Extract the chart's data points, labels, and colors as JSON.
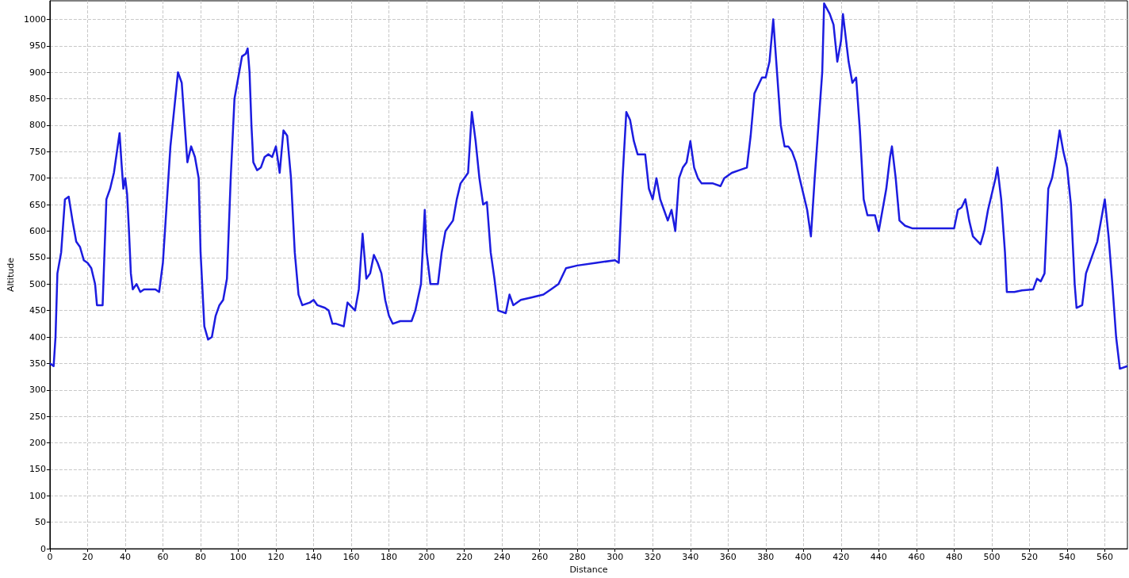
{
  "chart_data": {
    "type": "line",
    "xlabel": "Distance",
    "ylabel": "Altitude",
    "xlim": [
      0,
      572
    ],
    "ylim": [
      0,
      1035
    ],
    "xticks": [
      0,
      20,
      40,
      60,
      80,
      100,
      120,
      140,
      160,
      180,
      200,
      220,
      240,
      260,
      280,
      300,
      320,
      340,
      360,
      380,
      400,
      420,
      440,
      460,
      480,
      500,
      520,
      540,
      560
    ],
    "yticks": [
      0,
      50,
      100,
      150,
      200,
      250,
      300,
      350,
      400,
      450,
      500,
      550,
      600,
      650,
      700,
      750,
      800,
      850,
      900,
      950,
      1000
    ],
    "grid": true,
    "line_style": "solid",
    "marker": "none",
    "series": [
      {
        "color": "#1c1ce0",
        "x": [
          0,
          2,
          3,
          4,
          6,
          8,
          10,
          12,
          14,
          16,
          18,
          20,
          22,
          24,
          25,
          28,
          29,
          30,
          32,
          34,
          36,
          37,
          38,
          39,
          40,
          41,
          42,
          43,
          44,
          46,
          48,
          50,
          52,
          56,
          58,
          60,
          62,
          64,
          66,
          68,
          70,
          72,
          73,
          75,
          77,
          79,
          80,
          82,
          84,
          86,
          88,
          90,
          92,
          94,
          96,
          98,
          100,
          102,
          104,
          105,
          106,
          107,
          108,
          110,
          112,
          114,
          116,
          118,
          120,
          122,
          124,
          126,
          128,
          130,
          132,
          134,
          138,
          140,
          142,
          146,
          148,
          150,
          152,
          156,
          158,
          162,
          164,
          166,
          168,
          170,
          172,
          174,
          176,
          178,
          180,
          182,
          186,
          192,
          194,
          197,
          199,
          200,
          202,
          206,
          208,
          210,
          214,
          216,
          218,
          220,
          222,
          224,
          226,
          228,
          230,
          232,
          234,
          236,
          238,
          242,
          244,
          246,
          250,
          256,
          262,
          266,
          270,
          274,
          280,
          290,
          300,
          302,
          304,
          306,
          308,
          310,
          312,
          316,
          318,
          320,
          322,
          324,
          326,
          328,
          330,
          332,
          334,
          336,
          338,
          340,
          342,
          344,
          346,
          352,
          356,
          358,
          362,
          366,
          370,
          372,
          374,
          378,
          380,
          382,
          384,
          386,
          388,
          390,
          392,
          394,
          396,
          398,
          400,
          402,
          404,
          406,
          408,
          410,
          411,
          414,
          416,
          418,
          420,
          421,
          422,
          424,
          426,
          428,
          430,
          432,
          434,
          438,
          440,
          442,
          444,
          446,
          447,
          449,
          451,
          454,
          458,
          466,
          474,
          480,
          482,
          484,
          486,
          488,
          490,
          494,
          496,
          498,
          500,
          502,
          503,
          505,
          507,
          508,
          512,
          516,
          522,
          524,
          526,
          528,
          530,
          532,
          534,
          536,
          538,
          540,
          542,
          544,
          545,
          548,
          550,
          552,
          554,
          556,
          558,
          560,
          562,
          564,
          566,
          568,
          572
        ],
        "values": [
          350,
          345,
          400,
          520,
          560,
          660,
          665,
          620,
          580,
          570,
          545,
          540,
          530,
          500,
          460,
          460,
          560,
          660,
          680,
          710,
          760,
          785,
          730,
          680,
          700,
          670,
          600,
          520,
          490,
          500,
          485,
          490,
          490,
          490,
          485,
          540,
          650,
          760,
          830,
          900,
          880,
          780,
          730,
          760,
          740,
          700,
          560,
          420,
          395,
          400,
          440,
          460,
          470,
          510,
          700,
          850,
          890,
          930,
          935,
          945,
          900,
          800,
          730,
          715,
          720,
          740,
          745,
          740,
          760,
          710,
          790,
          780,
          700,
          560,
          480,
          460,
          465,
          470,
          460,
          455,
          450,
          425,
          425,
          420,
          465,
          450,
          490,
          595,
          510,
          520,
          555,
          540,
          520,
          470,
          440,
          425,
          430,
          430,
          450,
          500,
          640,
          560,
          500,
          500,
          560,
          600,
          620,
          660,
          690,
          700,
          710,
          825,
          770,
          700,
          650,
          655,
          560,
          510,
          450,
          445,
          480,
          460,
          470,
          475,
          480,
          490,
          500,
          530,
          535,
          540,
          545,
          540,
          700,
          825,
          810,
          770,
          745,
          745,
          680,
          660,
          700,
          660,
          640,
          620,
          640,
          600,
          700,
          720,
          730,
          770,
          720,
          700,
          690,
          690,
          685,
          700,
          710,
          715,
          720,
          780,
          860,
          890,
          890,
          920,
          1000,
          900,
          800,
          760,
          760,
          750,
          730,
          700,
          670,
          640,
          590,
          700,
          800,
          900,
          1030,
          1010,
          990,
          920,
          960,
          1010,
          980,
          920,
          880,
          890,
          790,
          660,
          630,
          630,
          600,
          640,
          680,
          740,
          760,
          700,
          620,
          610,
          605,
          605,
          605,
          605,
          640,
          645,
          660,
          620,
          590,
          575,
          600,
          640,
          670,
          700,
          720,
          660,
          560,
          485,
          485,
          488,
          490,
          510,
          505,
          520,
          680,
          700,
          740,
          790,
          750,
          720,
          650,
          500,
          455,
          460,
          520,
          540,
          560,
          580,
          620,
          660,
          590,
          500,
          400,
          340,
          345
        ]
      }
    ]
  }
}
